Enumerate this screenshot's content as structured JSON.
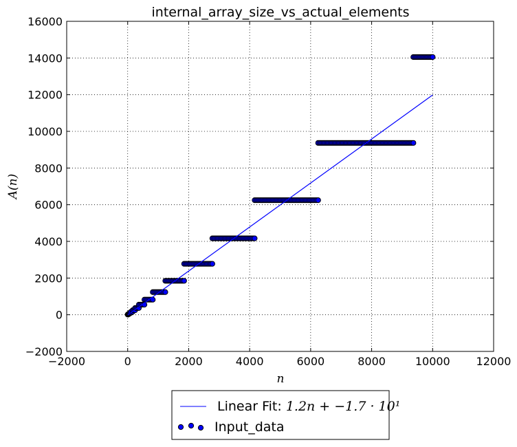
{
  "chart_data": {
    "type": "scatter",
    "title": "internal_array_size_vs_actual_elements",
    "xlabel": "n",
    "ylabel": "A(n)",
    "xlim": [
      -2000,
      12000
    ],
    "ylim": [
      -2000,
      16000
    ],
    "x_ticks": [
      "−2000",
      "0",
      "2000",
      "4000",
      "6000",
      "8000",
      "10000",
      "12000"
    ],
    "y_ticks": [
      "−2000",
      "0",
      "2000",
      "4000",
      "6000",
      "8000",
      "10000",
      "12000",
      "14000",
      "16000"
    ],
    "grid": true,
    "legend_position": "below plot",
    "fit_line": {
      "label_prefix": "Linear Fit: ",
      "label_math": "1.2n + −1.7 · 10¹",
      "slope": 1.2,
      "intercept": -17,
      "x_range": [
        0,
        10000
      ],
      "color": "#0000ff"
    },
    "series": [
      {
        "name": "Input_data",
        "marker_color": "#0000ff",
        "segments": [
          {
            "x": [
              0,
              10
            ],
            "y": 10
          },
          {
            "x": [
              10,
              15
            ],
            "y": 15
          },
          {
            "x": [
              15,
              22
            ],
            "y": 22
          },
          {
            "x": [
              22,
              33
            ],
            "y": 33
          },
          {
            "x": [
              33,
              49
            ],
            "y": 49
          },
          {
            "x": [
              49,
              73
            ],
            "y": 73
          },
          {
            "x": [
              73,
              109
            ],
            "y": 109
          },
          {
            "x": [
              109,
              163
            ],
            "y": 163
          },
          {
            "x": [
              163,
              244
            ],
            "y": 244
          },
          {
            "x": [
              244,
              366
            ],
            "y": 366
          },
          {
            "x": [
              366,
              549
            ],
            "y": 549
          },
          {
            "x": [
              549,
              823
            ],
            "y": 823
          },
          {
            "x": [
              823,
              1234
            ],
            "y": 1234
          },
          {
            "x": [
              1234,
              1851
            ],
            "y": 1851
          },
          {
            "x": [
              1851,
              2776
            ],
            "y": 2776
          },
          {
            "x": [
              2776,
              4164
            ],
            "y": 4164
          },
          {
            "x": [
              4164,
              6246
            ],
            "y": 6246
          },
          {
            "x": [
              6246,
              9369
            ],
            "y": 9369
          },
          {
            "x": [
              9369,
              10000
            ],
            "y": 14053
          }
        ]
      }
    ]
  }
}
